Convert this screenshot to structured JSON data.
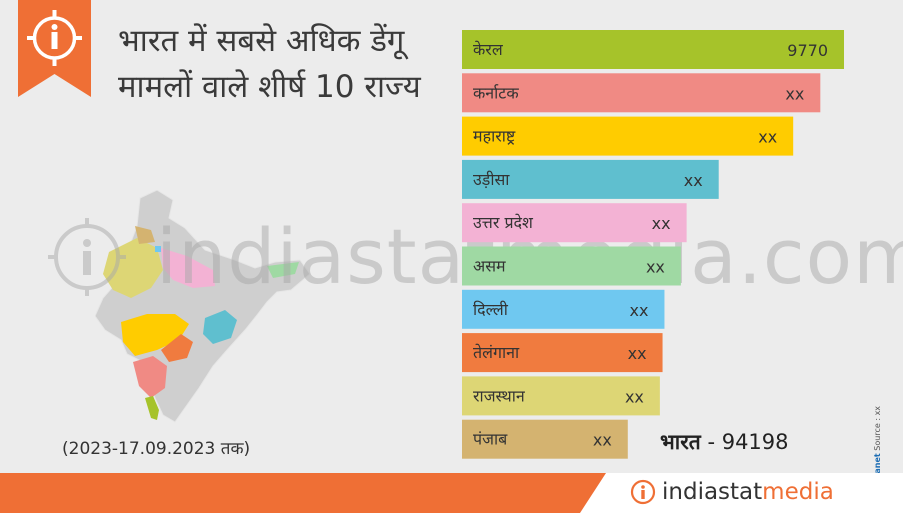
{
  "title": "भारत में सबसे अधिक डेंगू मामलों वाले शीर्ष 10 राज्य",
  "date_range": "(2023-17.09.2023 तक)",
  "total": {
    "label": "भारत",
    "value": "- 94198"
  },
  "source": {
    "brand": "Datanet",
    "text": "Source : xx",
    "prefix": "©"
  },
  "watermark": "indiastatmedia.com",
  "brand": {
    "part1": "indiastat",
    "part2": "media"
  },
  "colors": {
    "accent": "#ef6f35"
  },
  "chart_data": {
    "type": "bar",
    "orientation": "horizontal",
    "categories": [
      "केरल",
      "कर्नाटक",
      "महाराष्ट्र",
      "उड़ीसा",
      "उत्तर प्रदेश",
      "असम",
      "दिल्ली",
      "तेलंगाना",
      "राजस्थान",
      "पंजाब"
    ],
    "values": [
      9770,
      null,
      null,
      null,
      null,
      null,
      null,
      null,
      null,
      null
    ],
    "value_labels": [
      "9770",
      "xx",
      "xx",
      "xx",
      "xx",
      "xx",
      "xx",
      "xx",
      "xx",
      "xx"
    ],
    "bar_lengths_relative": [
      1.0,
      0.938,
      0.867,
      0.672,
      0.588,
      0.573,
      0.53,
      0.525,
      0.518,
      0.434
    ],
    "colors": [
      "#a6c32a",
      "#f08a84",
      "#ffcc00",
      "#5fbfcf",
      "#f3b2d4",
      "#9fd9a3",
      "#6fc8f0",
      "#f07b3f",
      "#ddd675",
      "#d4b370"
    ]
  }
}
